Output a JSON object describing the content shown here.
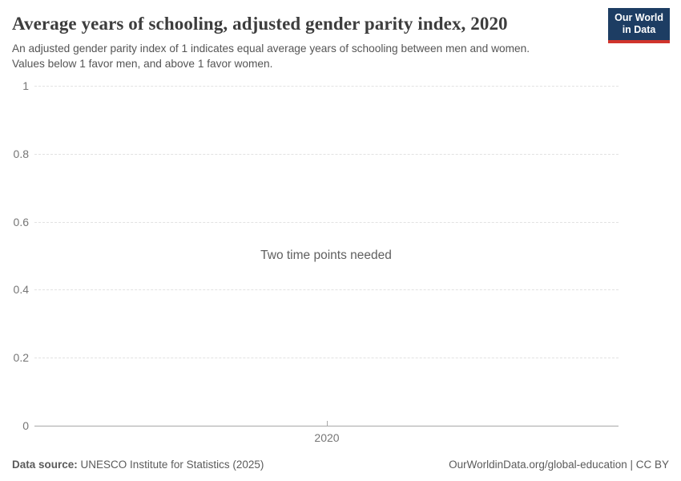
{
  "header": {
    "title": "Average years of schooling, adjusted gender parity index, 2020",
    "subtitle_line1": "An adjusted gender parity index of 1 indicates equal average years of schooling between men and women.",
    "subtitle_line2": "Values below 1 favor men, and above 1 favor women."
  },
  "logo": {
    "line1": "Our World",
    "line2": "in Data"
  },
  "colors": {
    "logo_bg": "#1d3d63",
    "logo_accent": "#d0342c",
    "title": "#3d3d3d",
    "subtitle": "#555555",
    "tick_label": "#767676",
    "gridline": "#e2e2e2",
    "axis_line": "#a8a8a8",
    "note": "#606060",
    "footer": "#5b5b5b"
  },
  "chart_data": {
    "type": "line",
    "title": "Average years of schooling, adjusted gender parity index, 2020",
    "message": "Two time points needed",
    "series": [],
    "x": [
      2020
    ],
    "xticks": [
      2020
    ],
    "yticks": [
      0,
      0.2,
      0.4,
      0.6,
      0.8,
      1
    ],
    "ylim": [
      0,
      1
    ],
    "xlabel": "",
    "ylabel": "",
    "grid": "horizontal-dashed",
    "legend": "none"
  },
  "footer": {
    "source_label": "Data source:",
    "source_text": "UNESCO Institute for Statistics (2025)",
    "attribution": "OurWorldinData.org/global-education | CC BY"
  }
}
